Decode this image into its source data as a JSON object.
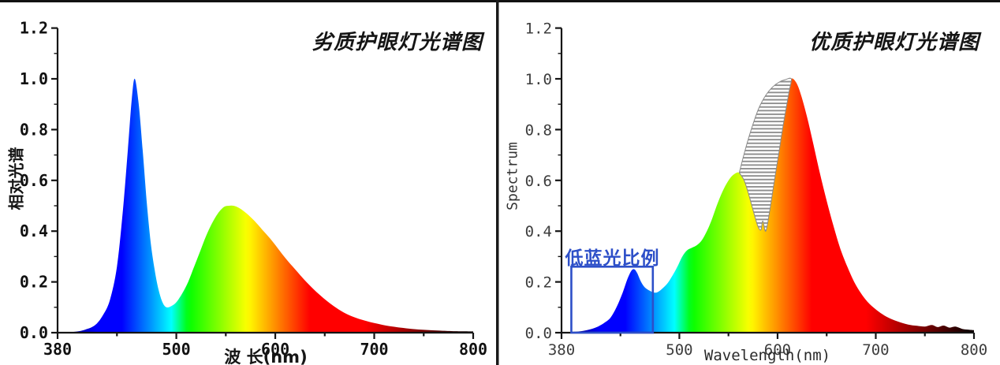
{
  "colors": {
    "background": "#ffffff",
    "axis": "#151515",
    "left_tick_label": "#111111",
    "right_tick_label": "#3d3d3d",
    "annotation_blue": "#2d4fc8",
    "hatch_stripe": "#8e8e8e",
    "divider": "#1a1a1a",
    "top_border": "#111111"
  },
  "chart_data": [
    {
      "type": "area",
      "panel": "left",
      "title": "劣质护眼灯光谱图",
      "xlabel": "波 长(nm)",
      "ylabel": "相对光谱",
      "xlim": [
        380,
        800
      ],
      "ylim": [
        0,
        1.2
      ],
      "xticks": [
        380,
        500,
        600,
        700,
        800
      ],
      "xticks_minor": [
        440,
        550,
        650,
        750
      ],
      "ytick_labels": [
        "1.2",
        "1.0",
        "0.8",
        "0.6",
        "0.4",
        "0.2",
        "0.0"
      ],
      "yticks": [
        1.2,
        1.0,
        0.8,
        0.6,
        0.4,
        0.2,
        0.0
      ],
      "yticks_minor": [
        0.1,
        0.3,
        0.5,
        0.7,
        0.9,
        1.1
      ],
      "grid": false,
      "fill": "visible-spectrum-gradient",
      "series": [
        {
          "name": "相对光谱 (relative spectral power)",
          "points": [
            [
              380,
              0.0
            ],
            [
              398,
              0.004
            ],
            [
              408,
              0.012
            ],
            [
              418,
              0.03
            ],
            [
              426,
              0.07
            ],
            [
              433,
              0.13
            ],
            [
              440,
              0.26
            ],
            [
              446,
              0.48
            ],
            [
              451,
              0.72
            ],
            [
              455,
              0.92
            ],
            [
              458,
              1.0
            ],
            [
              462,
              0.9
            ],
            [
              466,
              0.72
            ],
            [
              470,
              0.52
            ],
            [
              474,
              0.36
            ],
            [
              478,
              0.25
            ],
            [
              482,
              0.17
            ],
            [
              486,
              0.12
            ],
            [
              490,
              0.1
            ],
            [
              495,
              0.105
            ],
            [
              500,
              0.12
            ],
            [
              506,
              0.155
            ],
            [
              512,
              0.2
            ],
            [
              518,
              0.26
            ],
            [
              524,
              0.32
            ],
            [
              530,
              0.38
            ],
            [
              536,
              0.43
            ],
            [
              542,
              0.47
            ],
            [
              548,
              0.495
            ],
            [
              553,
              0.5
            ],
            [
              558,
              0.5
            ],
            [
              564,
              0.49
            ],
            [
              571,
              0.47
            ],
            [
              579,
              0.44
            ],
            [
              587,
              0.405
            ],
            [
              595,
              0.37
            ],
            [
              603,
              0.33
            ],
            [
              611,
              0.29
            ],
            [
              620,
              0.25
            ],
            [
              629,
              0.21
            ],
            [
              639,
              0.17
            ],
            [
              649,
              0.135
            ],
            [
              659,
              0.105
            ],
            [
              669,
              0.08
            ],
            [
              679,
              0.062
            ],
            [
              690,
              0.048
            ],
            [
              700,
              0.038
            ],
            [
              712,
              0.028
            ],
            [
              724,
              0.021
            ],
            [
              738,
              0.015
            ],
            [
              752,
              0.011
            ],
            [
              766,
              0.008
            ],
            [
              780,
              0.006
            ],
            [
              800,
              0.005
            ]
          ]
        }
      ],
      "features": {
        "blue_peak": {
          "wavelength": 458,
          "value": 1.0
        },
        "valley": {
          "wavelength": 490,
          "value": 0.1
        },
        "broad_peak": {
          "wavelength": 555,
          "value": 0.5
        }
      }
    },
    {
      "type": "area",
      "panel": "right",
      "title": "优质护眼灯光谱图",
      "xlabel": "Wavelength(nm)",
      "ylabel": "Spectrum",
      "xlim": [
        380,
        800
      ],
      "ylim": [
        0,
        1.2
      ],
      "xticks": [
        380,
        500,
        600,
        700,
        800
      ],
      "xticks_minor": [
        440,
        550,
        650,
        750
      ],
      "ytick_labels": [
        "1.2",
        "1.0",
        "0.8",
        "0.6",
        "0.4",
        "0.2",
        "0.0"
      ],
      "yticks": [
        1.2,
        1.0,
        0.8,
        0.6,
        0.4,
        0.2,
        0.0
      ],
      "yticks_minor": [
        0.1,
        0.3,
        0.5,
        0.7,
        0.9,
        1.1
      ],
      "grid": false,
      "fill": "visible-spectrum-gradient",
      "series": [
        {
          "name": "Spectrum",
          "points": [
            [
              380,
              0.0
            ],
            [
              392,
              0.003
            ],
            [
              400,
              0.006
            ],
            [
              408,
              0.012
            ],
            [
              416,
              0.022
            ],
            [
              424,
              0.04
            ],
            [
              430,
              0.06
            ],
            [
              436,
              0.1
            ],
            [
              442,
              0.155
            ],
            [
              447,
              0.21
            ],
            [
              451,
              0.243
            ],
            [
              454,
              0.25
            ],
            [
              457,
              0.235
            ],
            [
              461,
              0.2
            ],
            [
              465,
              0.178
            ],
            [
              470,
              0.165
            ],
            [
              474,
              0.158
            ],
            [
              478,
              0.16
            ],
            [
              483,
              0.175
            ],
            [
              488,
              0.195
            ],
            [
              493,
              0.225
            ],
            [
              498,
              0.26
            ],
            [
              503,
              0.3
            ],
            [
              508,
              0.325
            ],
            [
              513,
              0.335
            ],
            [
              518,
              0.345
            ],
            [
              523,
              0.365
            ],
            [
              528,
              0.4
            ],
            [
              533,
              0.445
            ],
            [
              539,
              0.51
            ],
            [
              545,
              0.565
            ],
            [
              551,
              0.605
            ],
            [
              556,
              0.625
            ],
            [
              561,
              0.63
            ],
            [
              566,
              0.6
            ],
            [
              571,
              0.54
            ],
            [
              576,
              0.47
            ],
            [
              580,
              0.42
            ],
            [
              583,
              0.405
            ],
            [
              585,
              0.44
            ],
            [
              588,
              0.4
            ],
            [
              592,
              0.48
            ],
            [
              596,
              0.58
            ],
            [
              601,
              0.7
            ],
            [
              605,
              0.8
            ],
            [
              609,
              0.89
            ],
            [
              612,
              0.955
            ],
            [
              614,
              1.0
            ],
            [
              619,
              0.985
            ],
            [
              624,
              0.935
            ],
            [
              630,
              0.85
            ],
            [
              636,
              0.75
            ],
            [
              643,
              0.63
            ],
            [
              650,
              0.52
            ],
            [
              657,
              0.42
            ],
            [
              664,
              0.33
            ],
            [
              671,
              0.26
            ],
            [
              678,
              0.2
            ],
            [
              685,
              0.155
            ],
            [
              692,
              0.12
            ],
            [
              699,
              0.095
            ],
            [
              707,
              0.072
            ],
            [
              715,
              0.055
            ],
            [
              724,
              0.042
            ],
            [
              733,
              0.032
            ],
            [
              742,
              0.027
            ],
            [
              750,
              0.024
            ],
            [
              757,
              0.03
            ],
            [
              763,
              0.022
            ],
            [
              769,
              0.028
            ],
            [
              775,
              0.02
            ],
            [
              781,
              0.024
            ],
            [
              788,
              0.015
            ],
            [
              794,
              0.012
            ],
            [
              800,
              0.01
            ]
          ]
        }
      ],
      "annotation": {
        "label": "低蓝光比例",
        "box": {
          "x1": 390,
          "x2": 473,
          "y1": 0,
          "y2": 0.26
        }
      },
      "hatch_region": {
        "style": "horizontal-stripes",
        "x_range": [
          561,
          614
        ],
        "envelope_points": [
          [
            561,
            0.63
          ],
          [
            567,
            0.72
          ],
          [
            574,
            0.81
          ],
          [
            581,
            0.885
          ],
          [
            588,
            0.935
          ],
          [
            595,
            0.968
          ],
          [
            602,
            0.988
          ],
          [
            608,
            0.997
          ],
          [
            614,
            1.0
          ]
        ]
      },
      "features": {
        "blue_peak": {
          "wavelength": 454,
          "value": 0.25
        },
        "blue_valley": {
          "wavelength": 476,
          "value": 0.16
        },
        "green_peak": {
          "wavelength": 561,
          "value": 0.63
        },
        "yellow_notch": {
          "wavelength": 586,
          "value": 0.4
        },
        "red_peak": {
          "wavelength": 614,
          "value": 1.0
        }
      }
    }
  ]
}
